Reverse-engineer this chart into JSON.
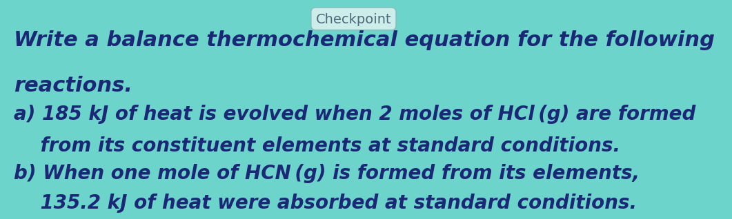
{
  "bg_color": "#6dd4cc",
  "title_line1": "Write a balance thermochemical equation for the following",
  "title_line2": "reactions.",
  "line_a1": "a) 185 kJ of heat is evolved when 2 moles of HCl (g) are formed",
  "line_a2": "    from its constituent elements at standard conditions.",
  "line_b1": "b) When one mole of HCN (g) is formed from its elements,",
  "line_b2": "    135.2 kJ of heat were absorbed at standard conditions.",
  "text_color": "#1a2875",
  "checkpoint_text": "Checkpoint",
  "checkpoint_bg": "#d8f0ee",
  "checkpoint_color": "#4a6a7a",
  "title_fontsize": 22,
  "body_fontsize": 20,
  "checkpoint_fontsize": 14
}
